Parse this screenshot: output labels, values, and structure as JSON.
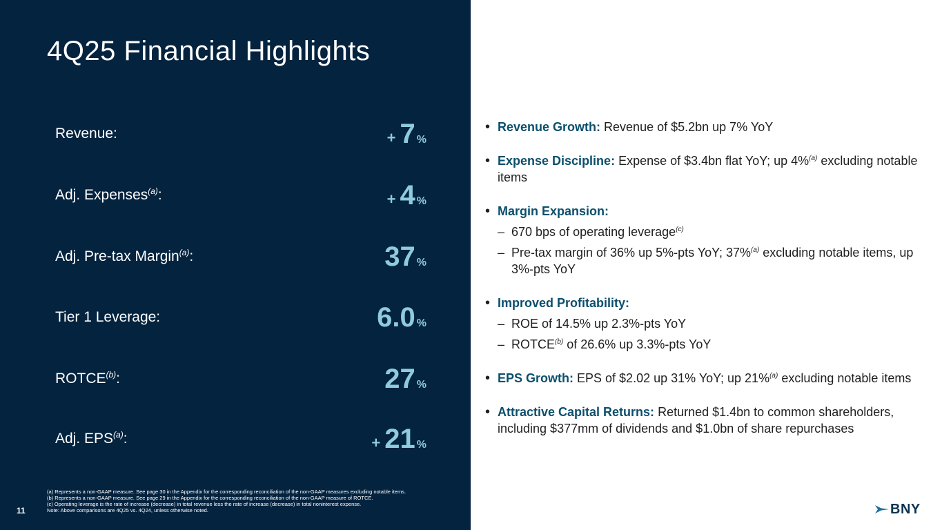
{
  "title": "4Q25 Financial Highlights",
  "metrics": [
    {
      "label": "Revenue:",
      "sup": "",
      "prefix": "+",
      "value": "7",
      "unit": "%"
    },
    {
      "label": "Adj. Expenses",
      "sup": "(a)",
      "suffix": ":",
      "prefix": "+",
      "value": "4",
      "unit": "%"
    },
    {
      "label": "Adj. Pre-tax Margin",
      "sup": "(a)",
      "suffix": ":",
      "prefix": "",
      "value": "37",
      "unit": "%"
    },
    {
      "label": "Tier 1 Leverage:",
      "sup": "",
      "prefix": "",
      "value": "6.0",
      "unit": "%"
    },
    {
      "label": "ROTCE",
      "sup": "(b)",
      "suffix": ":",
      "prefix": "",
      "value": "27",
      "unit": "%"
    },
    {
      "label": "Adj. EPS",
      "sup": "(a)",
      "suffix": ":",
      "prefix": "+",
      "value": "21",
      "unit": "%"
    }
  ],
  "bullets": {
    "revenue": {
      "head": "Revenue Growth:",
      "text": " Revenue of $5.2bn up 7% YoY"
    },
    "expense": {
      "head": "Expense Discipline:",
      "text1": " Expense of $3.4bn flat YoY; up 4%",
      "sup": "(a)",
      "text2": " excluding notable items"
    },
    "margin": {
      "head": "Margin Expansion:",
      "sub1": {
        "text1": "670 bps of operating leverage",
        "sup": "(c)"
      },
      "sub2": {
        "text1": "Pre-tax margin of 36% up 5%-pts YoY; 37%",
        "sup": "(a)",
        "text2": " excluding notable items, up 3%-pts YoY"
      }
    },
    "profitability": {
      "head": "Improved Profitability:",
      "sub1": "ROE of 14.5% up 2.3%-pts YoY",
      "sub2": {
        "text1": "ROTCE",
        "sup": "(b)",
        "text2": " of 26.6% up 3.3%-pts YoY"
      }
    },
    "eps": {
      "head": "EPS Growth:",
      "text1": " EPS of $2.02 up 31% YoY; up 21%",
      "sup": "(a)",
      "text2": " excluding notable items"
    },
    "capital": {
      "head": "Attractive Capital Returns:",
      "text": " Returned $1.4bn to common shareholders, including $377mm of dividends and $1.0bn of share repurchases"
    }
  },
  "footnotes": [
    "(a) Represents a non-GAAP measure. See page 30 in the Appendix for the corresponding reconciliation of the non-GAAP measures excluding notable items.",
    "(b) Represents a non-GAAP measure. See page 29 in the Appendix for the corresponding reconciliation of the non-GAAP measure of ROTCE.",
    "(c) Operating leverage is the rate of increase (decrease) in total revenue less the rate of increase (decrease) in total noninterest expense.",
    "Note: Above comparisons are 4Q25 vs. 4Q24, unless otherwise noted."
  ],
  "page_number": "11",
  "logo": {
    "text": "BNY",
    "icon": "chevron-arrow-icon",
    "color": "#1f6fa0"
  },
  "colors": {
    "panel": "#04233f",
    "accent": "#8ecbdc",
    "heading": "#0b4f6c"
  }
}
